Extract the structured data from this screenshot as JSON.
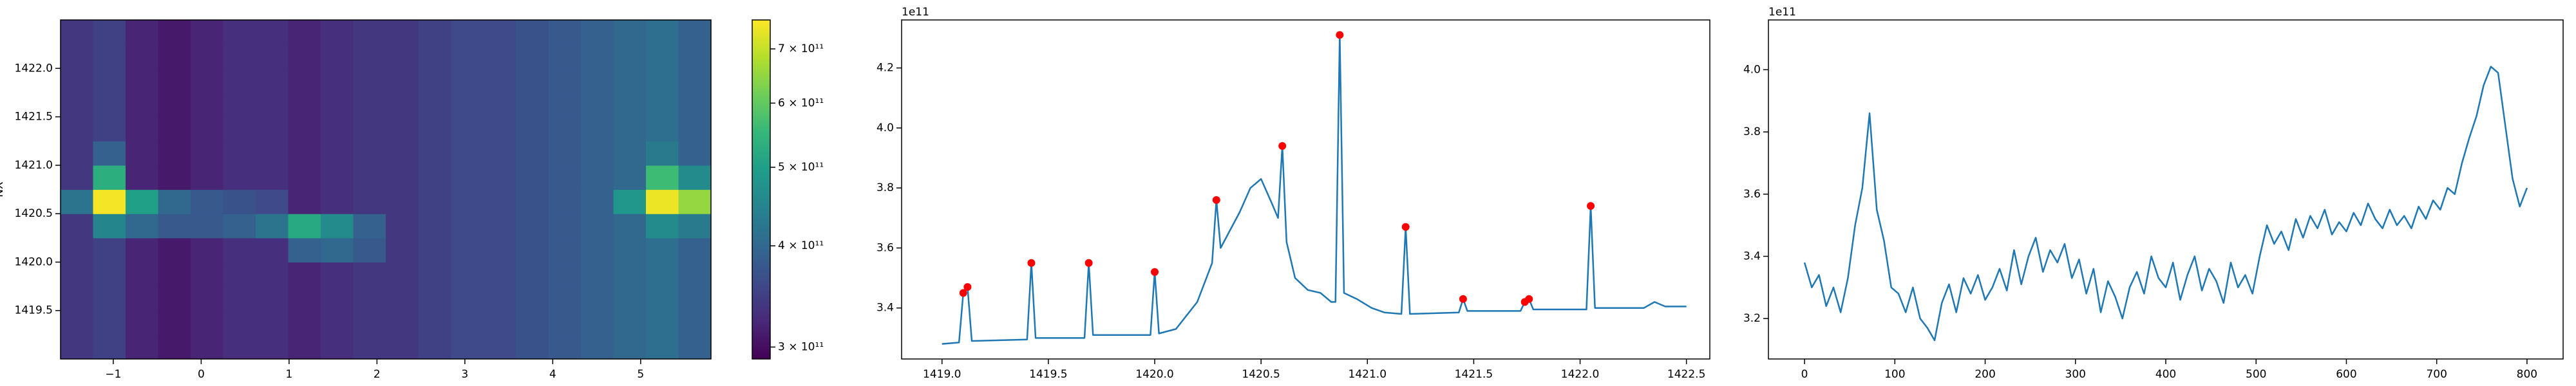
{
  "chart_data": [
    {
      "type": "heatmap",
      "ylabel": "NX",
      "colormap": "viridis",
      "x": [
        -1.415,
        -1.045,
        -0.675,
        -0.305,
        0.065,
        0.435,
        0.805,
        1.175,
        1.545,
        1.915,
        2.285,
        2.655,
        3.025,
        3.395,
        3.765,
        4.135,
        4.505,
        4.875,
        5.245,
        5.615
      ],
      "y": [
        1419.125,
        1419.375,
        1419.625,
        1419.875,
        1420.125,
        1420.375,
        1420.625,
        1420.875,
        1421.125,
        1421.375,
        1421.625,
        1421.875,
        1422.125,
        1422.375
      ],
      "z": [
        [
          340000000000.0,
          350000000000.0,
          320000000000.0,
          310000000000.0,
          320000000000.0,
          330000000000.0,
          330000000000.0,
          320000000000.0,
          330000000000.0,
          340000000000.0,
          340000000000.0,
          350000000000.0,
          360000000000.0,
          360000000000.0,
          370000000000.0,
          380000000000.0,
          390000000000.0,
          400000000000.0,
          410000000000.0,
          390000000000.0
        ],
        [
          340000000000.0,
          350000000000.0,
          320000000000.0,
          310000000000.0,
          320000000000.0,
          330000000000.0,
          330000000000.0,
          320000000000.0,
          330000000000.0,
          340000000000.0,
          340000000000.0,
          350000000000.0,
          360000000000.0,
          360000000000.0,
          370000000000.0,
          380000000000.0,
          390000000000.0,
          400000000000.0,
          410000000000.0,
          390000000000.0
        ],
        [
          340000000000.0,
          350000000000.0,
          320000000000.0,
          310000000000.0,
          320000000000.0,
          330000000000.0,
          330000000000.0,
          320000000000.0,
          330000000000.0,
          340000000000.0,
          340000000000.0,
          350000000000.0,
          360000000000.0,
          360000000000.0,
          370000000000.0,
          380000000000.0,
          390000000000.0,
          400000000000.0,
          410000000000.0,
          390000000000.0
        ],
        [
          340000000000.0,
          350000000000.0,
          320000000000.0,
          310000000000.0,
          320000000000.0,
          330000000000.0,
          330000000000.0,
          320000000000.0,
          330000000000.0,
          340000000000.0,
          340000000000.0,
          350000000000.0,
          360000000000.0,
          360000000000.0,
          370000000000.0,
          380000000000.0,
          390000000000.0,
          400000000000.0,
          410000000000.0,
          390000000000.0
        ],
        [
          340000000000.0,
          350000000000.0,
          320000000000.0,
          310000000000.0,
          320000000000.0,
          330000000000.0,
          330000000000.0,
          390000000000.0,
          400000000000.0,
          380000000000.0,
          340000000000.0,
          350000000000.0,
          360000000000.0,
          360000000000.0,
          370000000000.0,
          380000000000.0,
          390000000000.0,
          400000000000.0,
          410000000000.0,
          390000000000.0
        ],
        [
          340000000000.0,
          450000000000.0,
          400000000000.0,
          380000000000.0,
          380000000000.0,
          390000000000.0,
          420000000000.0,
          520000000000.0,
          460000000000.0,
          390000000000.0,
          340000000000.0,
          350000000000.0,
          360000000000.0,
          360000000000.0,
          370000000000.0,
          380000000000.0,
          390000000000.0,
          400000000000.0,
          460000000000.0,
          430000000000.0
        ],
        [
          420000000000.0,
          750000000000.0,
          500000000000.0,
          400000000000.0,
          380000000000.0,
          370000000000.0,
          360000000000.0,
          320000000000.0,
          330000000000.0,
          340000000000.0,
          340000000000.0,
          350000000000.0,
          360000000000.0,
          360000000000.0,
          370000000000.0,
          380000000000.0,
          390000000000.0,
          480000000000.0,
          740000000000.0,
          650000000000.0
        ],
        [
          340000000000.0,
          530000000000.0,
          320000000000.0,
          310000000000.0,
          320000000000.0,
          330000000000.0,
          330000000000.0,
          320000000000.0,
          330000000000.0,
          340000000000.0,
          340000000000.0,
          350000000000.0,
          360000000000.0,
          360000000000.0,
          370000000000.0,
          380000000000.0,
          390000000000.0,
          400000000000.0,
          560000000000.0,
          460000000000.0
        ],
        [
          340000000000.0,
          390000000000.0,
          320000000000.0,
          310000000000.0,
          320000000000.0,
          330000000000.0,
          330000000000.0,
          320000000000.0,
          330000000000.0,
          340000000000.0,
          340000000000.0,
          350000000000.0,
          360000000000.0,
          360000000000.0,
          370000000000.0,
          380000000000.0,
          390000000000.0,
          400000000000.0,
          430000000000.0,
          390000000000.0
        ],
        [
          340000000000.0,
          350000000000.0,
          320000000000.0,
          310000000000.0,
          320000000000.0,
          330000000000.0,
          330000000000.0,
          320000000000.0,
          330000000000.0,
          340000000000.0,
          340000000000.0,
          350000000000.0,
          360000000000.0,
          360000000000.0,
          370000000000.0,
          380000000000.0,
          390000000000.0,
          400000000000.0,
          410000000000.0,
          390000000000.0
        ],
        [
          340000000000.0,
          350000000000.0,
          320000000000.0,
          310000000000.0,
          320000000000.0,
          330000000000.0,
          330000000000.0,
          320000000000.0,
          330000000000.0,
          340000000000.0,
          340000000000.0,
          350000000000.0,
          360000000000.0,
          360000000000.0,
          370000000000.0,
          380000000000.0,
          390000000000.0,
          400000000000.0,
          410000000000.0,
          390000000000.0
        ],
        [
          340000000000.0,
          350000000000.0,
          320000000000.0,
          310000000000.0,
          320000000000.0,
          330000000000.0,
          330000000000.0,
          320000000000.0,
          330000000000.0,
          340000000000.0,
          340000000000.0,
          350000000000.0,
          360000000000.0,
          360000000000.0,
          370000000000.0,
          380000000000.0,
          390000000000.0,
          400000000000.0,
          410000000000.0,
          390000000000.0
        ],
        [
          340000000000.0,
          350000000000.0,
          320000000000.0,
          310000000000.0,
          320000000000.0,
          330000000000.0,
          330000000000.0,
          320000000000.0,
          330000000000.0,
          340000000000.0,
          340000000000.0,
          350000000000.0,
          360000000000.0,
          360000000000.0,
          370000000000.0,
          380000000000.0,
          390000000000.0,
          400000000000.0,
          410000000000.0,
          390000000000.0
        ],
        [
          340000000000.0,
          350000000000.0,
          320000000000.0,
          310000000000.0,
          320000000000.0,
          330000000000.0,
          330000000000.0,
          320000000000.0,
          330000000000.0,
          340000000000.0,
          340000000000.0,
          350000000000.0,
          360000000000.0,
          360000000000.0,
          370000000000.0,
          380000000000.0,
          390000000000.0,
          400000000000.0,
          410000000000.0,
          390000000000.0
        ]
      ],
      "xlim": [
        -1.6,
        5.8
      ],
      "ylim": [
        1419.0,
        1422.5
      ],
      "xticks": [
        {
          "value": -1,
          "label": "−1"
        },
        0,
        1,
        2,
        3,
        4,
        5
      ],
      "yticks": [
        1419.5,
        {
          "value": 1420,
          "label": "1420.0"
        },
        1420.5,
        {
          "value": 1421,
          "label": "1421.0"
        },
        1421.5,
        {
          "value": 1422,
          "label": "1422.0"
        }
      ],
      "colorbar": {
        "log": true,
        "zlim": [
          290000000000.0,
          760000000000.0
        ],
        "ticks": [
          {
            "value": 300000000000.0,
            "label": "3 × 10¹¹"
          },
          {
            "value": 400000000000.0,
            "label": "4 × 10¹¹"
          },
          {
            "value": 500000000000.0,
            "label": "5 × 10¹¹"
          },
          {
            "value": 600000000000.0,
            "label": "6 × 10¹¹"
          },
          {
            "value": 700000000000.0,
            "label": "7 × 10¹¹"
          }
        ]
      }
    },
    {
      "type": "line",
      "y_offset_label": "1e11",
      "x": [
        1419.0,
        1419.08,
        1419.1,
        1419.12,
        1419.14,
        1419.4,
        1419.42,
        1419.44,
        1419.67,
        1419.69,
        1419.71,
        1419.98,
        1420.0,
        1420.02,
        1420.1,
        1420.2,
        1420.27,
        1420.29,
        1420.31,
        1420.4,
        1420.45,
        1420.5,
        1420.55,
        1420.58,
        1420.6,
        1420.62,
        1420.66,
        1420.72,
        1420.78,
        1420.83,
        1420.85,
        1420.87,
        1420.89,
        1420.95,
        1421.02,
        1421.08,
        1421.16,
        1421.18,
        1421.2,
        1421.43,
        1421.45,
        1421.47,
        1421.72,
        1421.74,
        1421.76,
        1421.78,
        1422.03,
        1422.05,
        1422.07,
        1422.3,
        1422.35,
        1422.4,
        1422.5
      ],
      "series": [
        {
          "color": "#1f77b4",
          "values": [
            3.28,
            3.285,
            3.45,
            3.47,
            3.29,
            3.295,
            3.55,
            3.3,
            3.3,
            3.55,
            3.31,
            3.31,
            3.52,
            3.315,
            3.33,
            3.42,
            3.55,
            3.76,
            3.6,
            3.72,
            3.8,
            3.83,
            3.75,
            3.7,
            3.94,
            3.62,
            3.5,
            3.46,
            3.45,
            3.42,
            3.42,
            4.31,
            3.45,
            3.43,
            3.4,
            3.385,
            3.38,
            3.67,
            3.38,
            3.385,
            3.43,
            3.39,
            3.39,
            3.42,
            3.43,
            3.395,
            3.395,
            3.74,
            3.4,
            3.4,
            3.42,
            3.405,
            3.405
          ]
        }
      ],
      "markers": {
        "color": "#ff0000",
        "x": [
          1419.1,
          1419.12,
          1419.42,
          1419.69,
          1420.0,
          1420.29,
          1420.6,
          1420.87,
          1421.18,
          1421.45,
          1421.74,
          1421.76,
          1422.05
        ],
        "values": [
          3.45,
          3.47,
          3.55,
          3.55,
          3.52,
          3.76,
          3.94,
          4.31,
          3.67,
          3.43,
          3.42,
          3.43,
          3.74
        ]
      },
      "xlim": [
        1418.81,
        1422.61
      ],
      "ylim": [
        3.23,
        4.36
      ],
      "xticks": [
        {
          "value": 1419,
          "label": "1419.0"
        },
        1419.5,
        {
          "value": 1420,
          "label": "1420.0"
        },
        1420.5,
        {
          "value": 1421,
          "label": "1421.0"
        },
        1421.5,
        {
          "value": 1422,
          "label": "1422.0"
        },
        1422.5
      ],
      "yticks": [
        3.4,
        3.6,
        3.8,
        {
          "value": 4,
          "label": "4.0"
        },
        4.2
      ]
    },
    {
      "type": "line",
      "y_offset_label": "1e11",
      "x": [
        0,
        8,
        16,
        24,
        32,
        40,
        48,
        56,
        64,
        72,
        80,
        88,
        96,
        104,
        112,
        120,
        128,
        136,
        144,
        152,
        160,
        168,
        176,
        184,
        192,
        200,
        208,
        216,
        224,
        232,
        240,
        248,
        256,
        264,
        272,
        280,
        288,
        296,
        304,
        312,
        320,
        328,
        336,
        344,
        352,
        360,
        368,
        376,
        384,
        392,
        400,
        408,
        416,
        424,
        432,
        440,
        448,
        456,
        464,
        472,
        480,
        488,
        496,
        504,
        512,
        520,
        528,
        536,
        544,
        552,
        560,
        568,
        576,
        584,
        592,
        600,
        608,
        616,
        624,
        632,
        640,
        648,
        656,
        664,
        672,
        680,
        688,
        696,
        704,
        712,
        720,
        728,
        736,
        744,
        752,
        760,
        768,
        776,
        784,
        792,
        800
      ],
      "series": [
        {
          "color": "#1f77b4",
          "values": [
            3.38,
            3.3,
            3.34,
            3.24,
            3.3,
            3.22,
            3.33,
            3.5,
            3.62,
            3.86,
            3.55,
            3.45,
            3.3,
            3.28,
            3.22,
            3.3,
            3.2,
            3.17,
            3.13,
            3.25,
            3.31,
            3.22,
            3.33,
            3.28,
            3.34,
            3.26,
            3.3,
            3.36,
            3.29,
            3.42,
            3.31,
            3.4,
            3.46,
            3.35,
            3.42,
            3.38,
            3.44,
            3.33,
            3.39,
            3.28,
            3.36,
            3.22,
            3.32,
            3.27,
            3.2,
            3.3,
            3.35,
            3.28,
            3.4,
            3.33,
            3.3,
            3.38,
            3.26,
            3.34,
            3.4,
            3.29,
            3.36,
            3.32,
            3.25,
            3.38,
            3.3,
            3.34,
            3.28,
            3.4,
            3.5,
            3.44,
            3.48,
            3.42,
            3.52,
            3.46,
            3.53,
            3.49,
            3.55,
            3.47,
            3.51,
            3.48,
            3.54,
            3.5,
            3.57,
            3.52,
            3.49,
            3.55,
            3.5,
            3.53,
            3.49,
            3.56,
            3.52,
            3.58,
            3.55,
            3.62,
            3.6,
            3.7,
            3.78,
            3.85,
            3.95,
            4.01,
            3.99,
            3.82,
            3.65,
            3.56,
            3.62
          ]
        }
      ],
      "xlim": [
        -40,
        840
      ],
      "ylim": [
        3.07,
        4.16
      ],
      "xticks": [
        0,
        100,
        200,
        300,
        400,
        500,
        600,
        700,
        800
      ],
      "yticks": [
        3.2,
        3.4,
        3.6,
        3.8,
        {
          "value": 4,
          "label": "4.0"
        }
      ]
    }
  ]
}
